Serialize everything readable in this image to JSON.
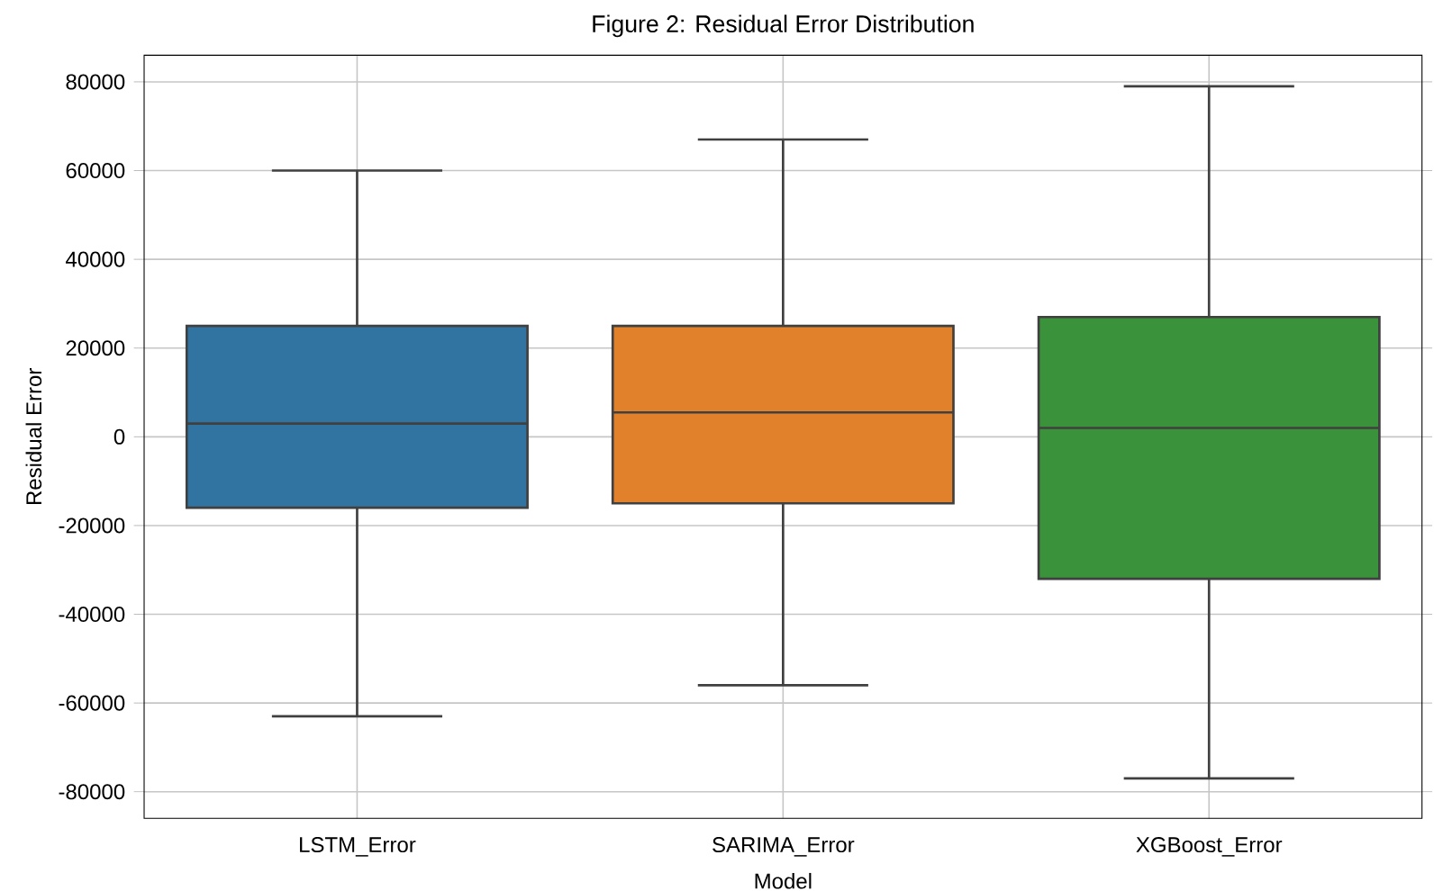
{
  "chart_data": {
    "type": "box",
    "title": "Figure 2: Residual Error Distribution",
    "xlabel": "Model",
    "ylabel": "Residual Error",
    "categories": [
      "LSTM_Error",
      "SARIMA_Error",
      "XGBoost_Error"
    ],
    "colors": [
      "#3274a1",
      "#e1812c",
      "#3a923a"
    ],
    "boxes": [
      {
        "low": -63000,
        "q1": -16000,
        "median": 3000,
        "q3": 25000,
        "high": 60000
      },
      {
        "low": -56000,
        "q1": -15000,
        "median": 5500,
        "q3": 25000,
        "high": 67000
      },
      {
        "low": -77000,
        "q1": -32000,
        "median": 2000,
        "q3": 27000,
        "high": 79000
      }
    ],
    "ylim": [
      -86000,
      86000
    ],
    "yticks": [
      -80000,
      -60000,
      -40000,
      -20000,
      0,
      20000,
      40000,
      60000,
      80000
    ],
    "grid": true
  }
}
